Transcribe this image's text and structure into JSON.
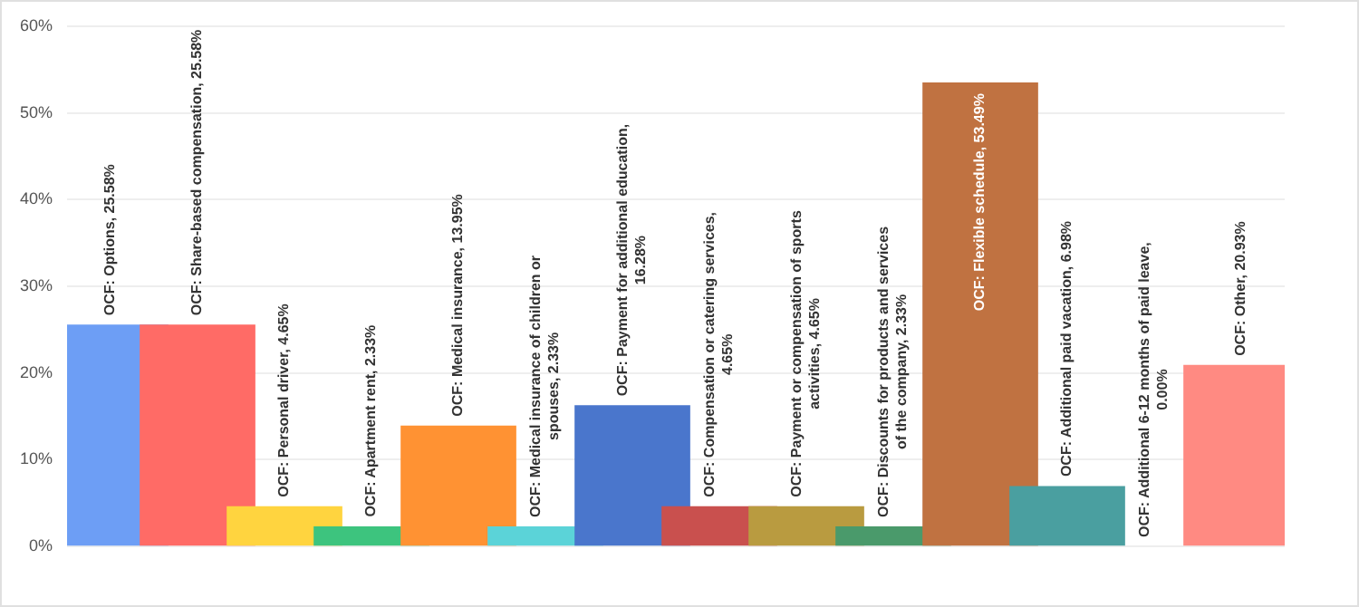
{
  "chart_data": {
    "type": "bar",
    "categories": [
      null,
      null,
      null,
      null,
      null,
      null,
      null,
      null,
      null,
      null,
      null,
      null,
      null,
      null
    ],
    "values": [
      25.58,
      25.58,
      4.65,
      2.33,
      13.95,
      2.33,
      16.28,
      4.65,
      4.65,
      2.33,
      53.49,
      6.98,
      0,
      20.93
    ],
    "value_labels": [
      "OCF: Options, 25.58%",
      "OCF: Share-based compensation, 25.58%",
      "OCF: Personal driver, 4.65%",
      "OCF: Apartment rent, 2.33%",
      "OCF: Medical insurance, 13.95%",
      "OCF: Medical insurance of children or\nspouses, 2.33%",
      "OCF: Payment for additional education,\n16.28%",
      "OCF: Compensation or catering services,\n4.65%",
      "OCF: Payment or compensation of sports\nactivities, 4.65%",
      "OCF: Discounts for products and services\nof the company, 2.33%",
      "OCF: Flexible schedule, 53.49%",
      "OCF: Additional paid vacation, 6.98%",
      "OCF: Additional 6-12 months of paid leave,\n0.00%",
      "OCF: Other, 20.93%"
    ],
    "colors": [
      "#6d9ef5",
      "#ff6b66",
      "#ffd43f",
      "#3dc47e",
      "#ff9233",
      "#5bd3d8",
      "#4a76cc",
      "#c9504e",
      "#b99b40",
      "#4a9a6b",
      "#c07241",
      "#4a9fa0",
      "#bbbbbb",
      "#ff8a82"
    ],
    "ylim": [
      0,
      60
    ],
    "yticks": [
      {
        "value": 0,
        "label": "0%"
      },
      {
        "value": 10,
        "label": "10%"
      },
      {
        "value": 20,
        "label": "20%"
      },
      {
        "value": 30,
        "label": "30%"
      },
      {
        "value": 40,
        "label": "40%"
      },
      {
        "value": 50,
        "label": "50%"
      },
      {
        "value": 60,
        "label": "60%"
      }
    ],
    "grid": "y"
  }
}
